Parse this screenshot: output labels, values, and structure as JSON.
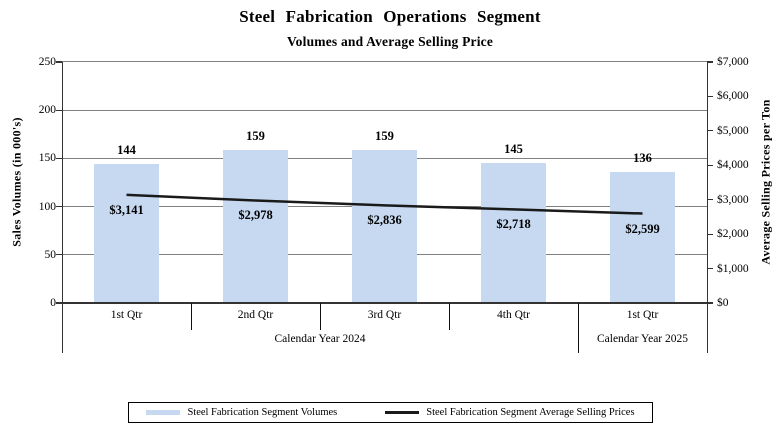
{
  "title": "Steel Fabrication Operations Segment",
  "subtitle": "Volumes and Average Selling Price",
  "chart_data": {
    "type": "bar",
    "combo": "bar+line",
    "categories": [
      "1st Qtr",
      "2nd Qtr",
      "3rd Qtr",
      "4th Qtr",
      "1st Qtr"
    ],
    "category_groups": [
      {
        "label": "Calendar Year 2024",
        "span": 4
      },
      {
        "label": "Calendar Year 2025",
        "span": 1
      }
    ],
    "series": [
      {
        "name": "Steel Fabrication Segment Volumes",
        "type": "bar",
        "axis": "left",
        "color": "#c6d9f1",
        "values": [
          144,
          159,
          159,
          145,
          136
        ],
        "data_labels": [
          "144",
          "159",
          "159",
          "145",
          "136"
        ]
      },
      {
        "name": "Steel Fabrication Segment Average Selling Prices",
        "type": "line",
        "axis": "right",
        "color": "#1a1a1a",
        "values": [
          3141,
          2978,
          2836,
          2718,
          2599
        ],
        "data_labels": [
          "$3,141",
          "$2,978",
          "$2,836",
          "$2,718",
          "$2,599"
        ]
      }
    ],
    "left_axis": {
      "title": "Sales Volumes (in 000's)",
      "min": 0,
      "max": 250,
      "step": 50,
      "tick_labels": [
        "0",
        "50",
        "100",
        "150",
        "200",
        "250"
      ]
    },
    "right_axis": {
      "title": "Average Selling Prices per Ton",
      "min": 0,
      "max": 7000,
      "step": 1000,
      "tick_labels": [
        "$0",
        "$1,000",
        "$2,000",
        "$3,000",
        "$4,000",
        "$5,000",
        "$6,000",
        "$7,000"
      ]
    },
    "grid": true,
    "gridline_color": "#808080",
    "legend_position": "bottom"
  }
}
